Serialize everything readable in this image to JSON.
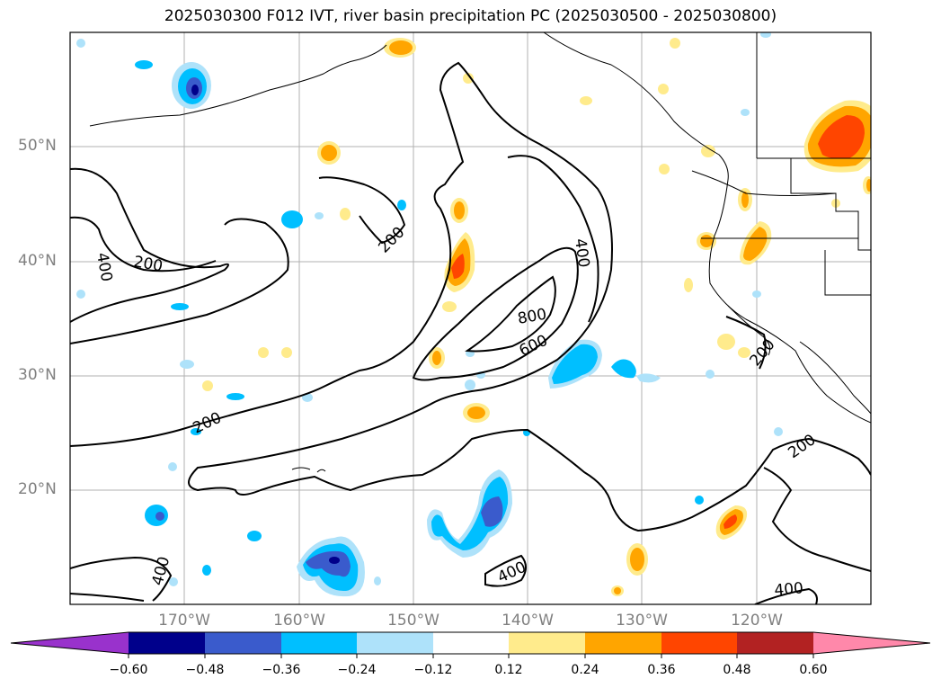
{
  "title": "2025030300 F012 IVT, river basin precipitation PC (2025030500 - 2025030800)",
  "lat_labels": [
    "50°N",
    "40°N",
    "30°N",
    "20°N"
  ],
  "lon_labels": [
    "170°W",
    "160°W",
    "150°W",
    "140°W",
    "130°W",
    "120°W"
  ],
  "colorbar": {
    "ticks": [
      "−0.60",
      "−0.48",
      "−0.36",
      "−0.24",
      "−0.12",
      "0.12",
      "0.24",
      "0.36",
      "0.48",
      "0.60"
    ],
    "colors": [
      "#9932cc",
      "#00008b",
      "#3a5bcc",
      "#00bfff",
      "#aee2fa",
      "#ffffff",
      "#ffeb8c",
      "#ffa500",
      "#ff4500",
      "#b22222",
      "#ff88aa"
    ]
  },
  "ivt_contour_labels": [
    "400",
    "200",
    "200",
    "400",
    "800",
    "600",
    "200",
    "200",
    "200",
    "400",
    "400",
    "400"
  ],
  "colors": {
    "land_outline": "#000000",
    "grid": "#b0b0b0",
    "neg_light": "#aee2fa",
    "neg_mid": "#00bfff",
    "neg_strong": "#3a5bcc",
    "neg_max": "#00008b",
    "pos_light": "#ffeb8c",
    "pos_mid": "#ffa500",
    "pos_strong": "#ff4500"
  }
}
